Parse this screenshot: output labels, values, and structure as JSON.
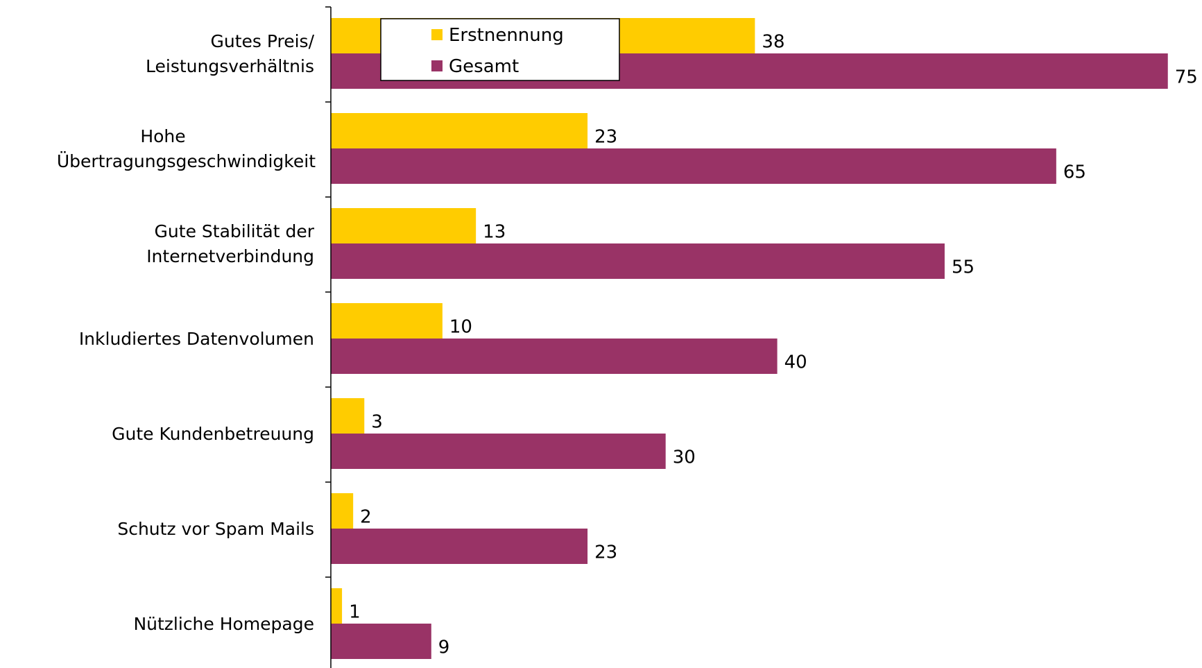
{
  "chart_data": {
    "type": "bar",
    "orientation": "horizontal",
    "title": "",
    "xlabel": "",
    "ylabel": "",
    "xlim": [
      0,
      75
    ],
    "grid": false,
    "legend_position": "top",
    "categories": [
      [
        "Gutes Preis/",
        "Leistungsverhältnis"
      ],
      [
        "Hohe",
        "Übertragungsgeschwindigkeit"
      ],
      [
        "Gute Stabilität der",
        "Internetverbindung"
      ],
      [
        "Inkludiertes Datenvolumen"
      ],
      [
        "Gute Kundenbetreuung"
      ],
      [
        "Schutz vor Spam Mails"
      ],
      [
        "Nützliche Homepage"
      ]
    ],
    "series": [
      {
        "name": "Erstnennung",
        "color": "#FFCC00",
        "values": [
          38,
          23,
          13,
          10,
          3,
          2,
          1
        ]
      },
      {
        "name": "Gesamt",
        "color": "#993366",
        "values": [
          75,
          65,
          55,
          40,
          30,
          23,
          9
        ]
      }
    ]
  }
}
